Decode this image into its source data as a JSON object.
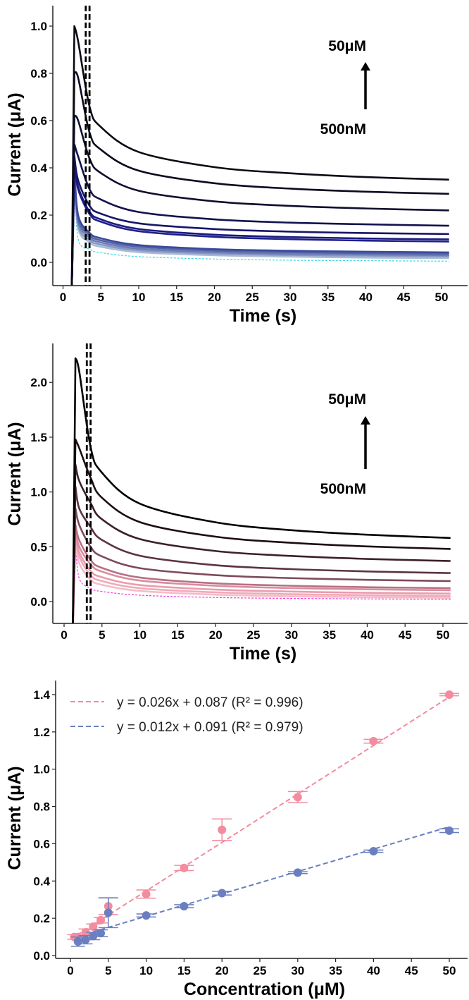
{
  "chart_data": [
    {
      "type": "line",
      "xlabel": "Time (s)",
      "ylabel": "Current (μA)",
      "xlim": [
        -1.5,
        54
      ],
      "ylim": [
        -0.1,
        1.08
      ],
      "xticks": [
        "0",
        "5",
        "10",
        "15",
        "20",
        "25",
        "30",
        "35",
        "40",
        "45",
        "50"
      ],
      "yticks": [
        "0.0",
        "0.2",
        "0.4",
        "0.6",
        "0.8",
        "1.0"
      ],
      "grid": false,
      "vlines": [
        3.0,
        3.5
      ],
      "annotations": {
        "top": "50μM",
        "bottom": "500nM",
        "arrow": "up"
      },
      "x": [
        1.15,
        1.5,
        2,
        3.5,
        5,
        10,
        20,
        30,
        40,
        51
      ],
      "series": [
        {
          "color": "#0a0a14",
          "dashed": false,
          "values": [
            -0.12,
            1.0,
            0.935,
            0.66,
            0.573,
            0.467,
            0.403,
            0.377,
            0.361,
            0.35
          ]
        },
        {
          "color": "#0b0b22",
          "dashed": false,
          "values": [
            -0.12,
            0.8,
            0.781,
            0.55,
            0.477,
            0.388,
            0.335,
            0.312,
            0.299,
            0.29
          ]
        },
        {
          "color": "#0e0e30",
          "dashed": false,
          "values": [
            -0.12,
            0.62,
            0.6,
            0.44,
            0.378,
            0.303,
            0.258,
            0.239,
            0.228,
            0.22
          ]
        },
        {
          "color": "#12124f",
          "dashed": false,
          "values": [
            -0.12,
            0.5,
            0.448,
            0.31,
            0.266,
            0.213,
            0.182,
            0.168,
            0.161,
            0.155
          ]
        },
        {
          "color": "#16166a",
          "dashed": false,
          "values": [
            -0.12,
            0.45,
            0.347,
            0.24,
            0.206,
            0.165,
            0.141,
            0.13,
            0.124,
            0.12
          ]
        },
        {
          "color": "#1a1a7e",
          "dashed": false,
          "values": [
            -0.12,
            0.43,
            0.32,
            0.215,
            0.182,
            0.141,
            0.117,
            0.107,
            0.101,
            0.097
          ]
        },
        {
          "color": "#1f1f8e",
          "dashed": false,
          "values": [
            -0.12,
            0.42,
            0.309,
            0.205,
            0.172,
            0.132,
            0.108,
            0.098,
            0.092,
            0.088
          ]
        },
        {
          "color": "#3a4a9a",
          "dashed": false,
          "values": [
            -0.12,
            0.4,
            0.199,
            0.125,
            0.102,
            0.073,
            0.056,
            0.049,
            0.045,
            0.042
          ]
        },
        {
          "color": "#5262a8",
          "dashed": false,
          "values": [
            -0.12,
            0.39,
            0.185,
            0.115,
            0.093,
            0.066,
            0.05,
            0.043,
            0.039,
            0.036
          ]
        },
        {
          "color": "#6c7cb6",
          "dashed": false,
          "values": [
            -0.12,
            0.38,
            0.172,
            0.105,
            0.084,
            0.058,
            0.043,
            0.036,
            0.033,
            0.03
          ]
        },
        {
          "color": "#8898c4",
          "dashed": false,
          "values": [
            -0.12,
            0.37,
            0.157,
            0.095,
            0.075,
            0.051,
            0.037,
            0.031,
            0.028,
            0.025
          ]
        },
        {
          "color": "#a8bad4",
          "dashed": false,
          "values": [
            -0.12,
            0.36,
            0.144,
            0.085,
            0.066,
            0.043,
            0.03,
            0.024,
            0.02,
            0.018
          ]
        },
        {
          "color": "#3fd8e0",
          "dashed": true,
          "values": [
            -0.12,
            0.34,
            0.099,
            0.055,
            0.041,
            0.024,
            0.014,
            0.009,
            0.007,
            0.005
          ]
        }
      ]
    },
    {
      "type": "line",
      "xlabel": "Time (s)",
      "ylabel": "Current (μA)",
      "xlim": [
        -1.5,
        54
      ],
      "ylim": [
        -0.19,
        2.36
      ],
      "xticks": [
        "0",
        "5",
        "10",
        "15",
        "20",
        "25",
        "30",
        "35",
        "40",
        "45",
        "50"
      ],
      "yticks": [
        "0.0",
        "0.5",
        "1.0",
        "1.5",
        "2.0"
      ],
      "grid": false,
      "vlines": [
        3.0,
        3.5
      ],
      "annotations": {
        "top": "50μM",
        "bottom": "500nM",
        "arrow": "up"
      },
      "x": [
        1.15,
        1.5,
        2,
        3.5,
        5,
        10,
        20,
        30,
        40,
        51
      ],
      "series": [
        {
          "color": "#000000",
          "dashed": false,
          "values": [
            -0.25,
            2.22,
            2.1,
            1.41,
            1.176,
            0.893,
            0.723,
            0.651,
            0.61,
            0.58
          ]
        },
        {
          "color": "#1c0c12",
          "dashed": false,
          "values": [
            -0.25,
            1.48,
            1.4,
            1.13,
            0.947,
            0.725,
            0.592,
            0.536,
            0.503,
            0.48
          ]
        },
        {
          "color": "#3b2029",
          "dashed": false,
          "values": [
            -0.25,
            1.25,
            1.1,
            0.9,
            0.751,
            0.57,
            0.461,
            0.416,
            0.389,
            0.37
          ]
        },
        {
          "color": "#5c3343",
          "dashed": false,
          "values": [
            -0.25,
            1.05,
            0.85,
            0.68,
            0.562,
            0.418,
            0.332,
            0.296,
            0.275,
            0.26
          ]
        },
        {
          "color": "#7e4a5c",
          "dashed": false,
          "values": [
            -0.25,
            0.85,
            0.7,
            0.5,
            0.412,
            0.305,
            0.241,
            0.214,
            0.198,
            0.187
          ]
        },
        {
          "color": "#b86f84",
          "dashed": false,
          "values": [
            -0.25,
            0.7,
            0.56,
            0.38,
            0.307,
            0.219,
            0.166,
            0.144,
            0.131,
            0.122
          ]
        },
        {
          "color": "#d98c9e",
          "dashed": false,
          "values": [
            -0.25,
            0.65,
            0.5,
            0.34,
            0.273,
            0.192,
            0.144,
            0.123,
            0.112,
            0.103
          ]
        },
        {
          "color": "#e99cad",
          "dashed": false,
          "values": [
            -0.25,
            0.6,
            0.45,
            0.28,
            0.222,
            0.151,
            0.109,
            0.091,
            0.08,
            0.073
          ]
        },
        {
          "color": "#f0aab8",
          "dashed": false,
          "values": [
            -0.25,
            0.57,
            0.41,
            0.24,
            0.187,
            0.122,
            0.084,
            0.067,
            0.058,
            0.051
          ]
        },
        {
          "color": "#f6bcc7",
          "dashed": false,
          "values": [
            -0.25,
            0.55,
            0.35,
            0.2,
            0.153,
            0.097,
            0.063,
            0.048,
            0.04,
            0.034
          ]
        },
        {
          "color": "#f03cd8",
          "dashed": true,
          "values": [
            -0.25,
            0.52,
            0.21,
            0.12,
            0.092,
            0.058,
            0.037,
            0.029,
            0.024,
            0.02
          ]
        }
      ]
    },
    {
      "type": "scatter",
      "xlabel": "Concentration (μM)",
      "ylabel": "Current (μA)",
      "xlim": [
        -1.8,
        54
      ],
      "ylim": [
        -0.015,
        1.48
      ],
      "xticks": [
        "0",
        "5",
        "10",
        "15",
        "20",
        "25",
        "30",
        "35",
        "40",
        "45",
        "50"
      ],
      "yticks": [
        "0.0",
        "0.2",
        "0.4",
        "0.6",
        "0.8",
        "1.0",
        "1.2",
        "1.4"
      ],
      "grid": false,
      "legend_position": "top-left",
      "series": [
        {
          "color": "#f28c9e",
          "fit_label": "y = 0.026x + 0.087 (R² = 0.996)",
          "fit": {
            "slope": 0.026,
            "intercept": 0.087,
            "x_range": [
              0,
              50
            ]
          },
          "x": [
            0.5,
            1,
            2,
            3,
            4,
            5,
            10,
            15,
            20,
            30,
            40,
            50
          ],
          "y": [
            0.1,
            0.1,
            0.125,
            0.155,
            0.19,
            0.265,
            0.33,
            0.47,
            0.675,
            0.85,
            1.15,
            1.4
          ],
          "err": [
            0.012,
            0.012,
            0.018,
            0.015,
            0.015,
            0.045,
            0.022,
            0.014,
            0.058,
            0.03,
            0.01,
            0.006
          ]
        },
        {
          "color": "#6b7fc0",
          "fit_label": "y = 0.012x + 0.091 (R² = 0.979)",
          "fit": {
            "slope": 0.012,
            "intercept": 0.091,
            "x_range": [
              1,
              50
            ]
          },
          "x": [
            1,
            2,
            3,
            4,
            5,
            10,
            15,
            20,
            30,
            40,
            50
          ],
          "y": [
            0.075,
            0.085,
            0.105,
            0.12,
            0.23,
            0.215,
            0.265,
            0.335,
            0.445,
            0.56,
            0.67
          ],
          "err": [
            0.025,
            0.022,
            0.02,
            0.018,
            0.08,
            0.008,
            0.008,
            0.01,
            0.005,
            0.006,
            0.01
          ]
        }
      ]
    }
  ]
}
